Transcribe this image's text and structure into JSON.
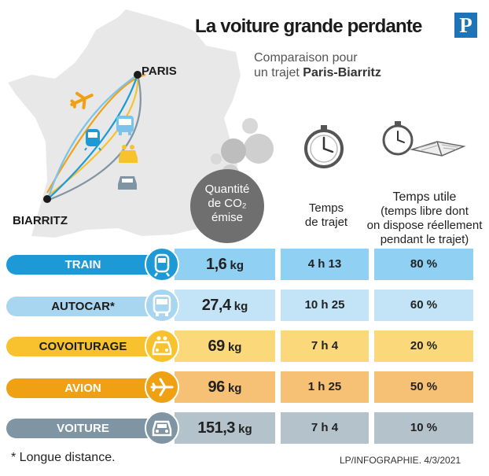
{
  "header": {
    "title": "La voiture grande perdante",
    "logo_letter": "P",
    "subtitle_line1": "Comparaison pour",
    "subtitle_line2_prefix": "un trajet ",
    "subtitle_line2_bold": "Paris-Biarritz"
  },
  "map": {
    "city_paris": "PARIS",
    "city_biarritz": "BIARRITZ"
  },
  "columns": {
    "co2": [
      "Quantité",
      "de CO₂",
      "émise"
    ],
    "duration": [
      "Temps",
      "de trajet"
    ],
    "useful": [
      "Temps utile",
      "(temps libre dont",
      "on dispose réellement",
      "pendant le trajet)"
    ]
  },
  "rows": [
    {
      "mode": "TRAIN",
      "icon": "train-icon",
      "co2_value": "1,6",
      "co2_unit": "kg",
      "duration": "4 h 13",
      "useful": "80 %"
    },
    {
      "mode": "AUTOCAR*",
      "icon": "bus-icon",
      "co2_value": "27,4",
      "co2_unit": "kg",
      "duration": "10 h 25",
      "useful": "60 %"
    },
    {
      "mode": "COVOITURAGE",
      "icon": "carpool-car-icon",
      "co2_value": "69",
      "co2_unit": "kg",
      "duration": "7 h 4",
      "useful": "20 %"
    },
    {
      "mode": "AVION",
      "icon": "plane-icon",
      "co2_value": "96",
      "co2_unit": "kg",
      "duration": "1 h 25",
      "useful": "50 %"
    },
    {
      "mode": "VOITURE",
      "icon": "car-icon",
      "co2_value": "151,3",
      "co2_unit": "kg",
      "duration": "7 h 4",
      "useful": "10 %"
    }
  ],
  "colors": {
    "train": "#1d9ad6",
    "autocar": "#a8d6f0",
    "covoiturage": "#f7c22d",
    "avion": "#f0a013",
    "voiture": "#7f95a3",
    "map": "#e8e8e8"
  },
  "footer": {
    "footnote": "* Longue distance.",
    "credit": "LP/INFOGRAPHIE. 4/3/2021"
  }
}
